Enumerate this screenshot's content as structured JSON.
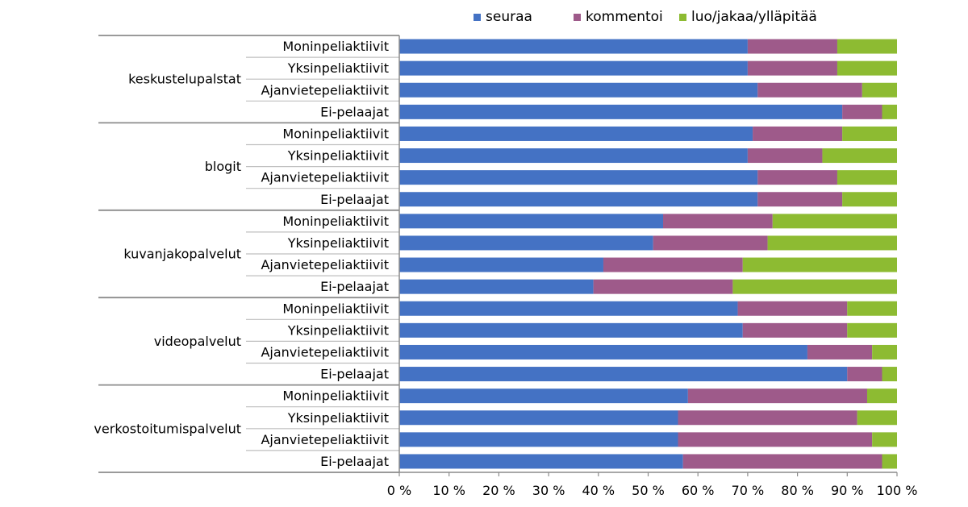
{
  "chart_data": {
    "type": "bar",
    "orientation": "horizontal",
    "stacked": true,
    "percent_stacked": true,
    "legend": {
      "placement": "top-right"
    },
    "xlim": [
      0,
      100
    ],
    "x_ticks": [
      "0 %",
      "10 %",
      "20 %",
      "30 %",
      "40 %",
      "50 %",
      "60 %",
      "70 %",
      "80 %",
      "90 %",
      "100 %"
    ],
    "series": [
      {
        "name": "seuraa",
        "color": "#4472C4"
      },
      {
        "name": "kommentoi",
        "color": "#9E5A8A"
      },
      {
        "name": "luo/jakaa/ylläpitää",
        "color": "#8DBB32"
      }
    ],
    "groups": [
      {
        "name": "keskustelupalstat",
        "rows": [
          {
            "label": "Moninpeliaktiivit",
            "values": [
              70,
              18,
              12
            ]
          },
          {
            "label": "Yksinpeliaktiivit",
            "values": [
              70,
              18,
              12
            ]
          },
          {
            "label": "Ajanvietepeliaktiivit",
            "values": [
              72,
              21,
              7
            ]
          },
          {
            "label": "Ei-pelaajat",
            "values": [
              89,
              8,
              3
            ]
          }
        ]
      },
      {
        "name": "blogit",
        "rows": [
          {
            "label": "Moninpeliaktiivit",
            "values": [
              71,
              18,
              11
            ]
          },
          {
            "label": "Yksinpeliaktiivit",
            "values": [
              70,
              15,
              15
            ]
          },
          {
            "label": "Ajanvietepeliaktiivit",
            "values": [
              72,
              16,
              12
            ]
          },
          {
            "label": "Ei-pelaajat",
            "values": [
              72,
              17,
              11
            ]
          }
        ]
      },
      {
        "name": "kuvanjakopalvelut",
        "rows": [
          {
            "label": "Moninpeliaktiivit",
            "values": [
              53,
              22,
              25
            ]
          },
          {
            "label": "Yksinpeliaktiivit",
            "values": [
              51,
              23,
              26
            ]
          },
          {
            "label": "Ajanvietepeliaktiivit",
            "values": [
              41,
              28,
              31
            ]
          },
          {
            "label": "Ei-pelaajat",
            "values": [
              39,
              28,
              33
            ]
          }
        ]
      },
      {
        "name": "videopalvelut",
        "rows": [
          {
            "label": "Moninpeliaktiivit",
            "values": [
              68,
              22,
              10
            ]
          },
          {
            "label": "Yksinpeliaktiivit",
            "values": [
              69,
              21,
              10
            ]
          },
          {
            "label": "Ajanvietepeliaktiivit",
            "values": [
              82,
              13,
              5
            ]
          },
          {
            "label": "Ei-pelaajat",
            "values": [
              90,
              7,
              3
            ]
          }
        ]
      },
      {
        "name": "verkostoitumispalvelut",
        "rows": [
          {
            "label": "Moninpeliaktiivit",
            "values": [
              58,
              36,
              6
            ]
          },
          {
            "label": "Yksinpeliaktiivit",
            "values": [
              56,
              36,
              8
            ]
          },
          {
            "label": "Ajanvietepeliaktiivit",
            "values": [
              56,
              39,
              5
            ]
          },
          {
            "label": "Ei-pelaajat",
            "values": [
              57,
              40,
              3
            ]
          }
        ]
      }
    ]
  }
}
